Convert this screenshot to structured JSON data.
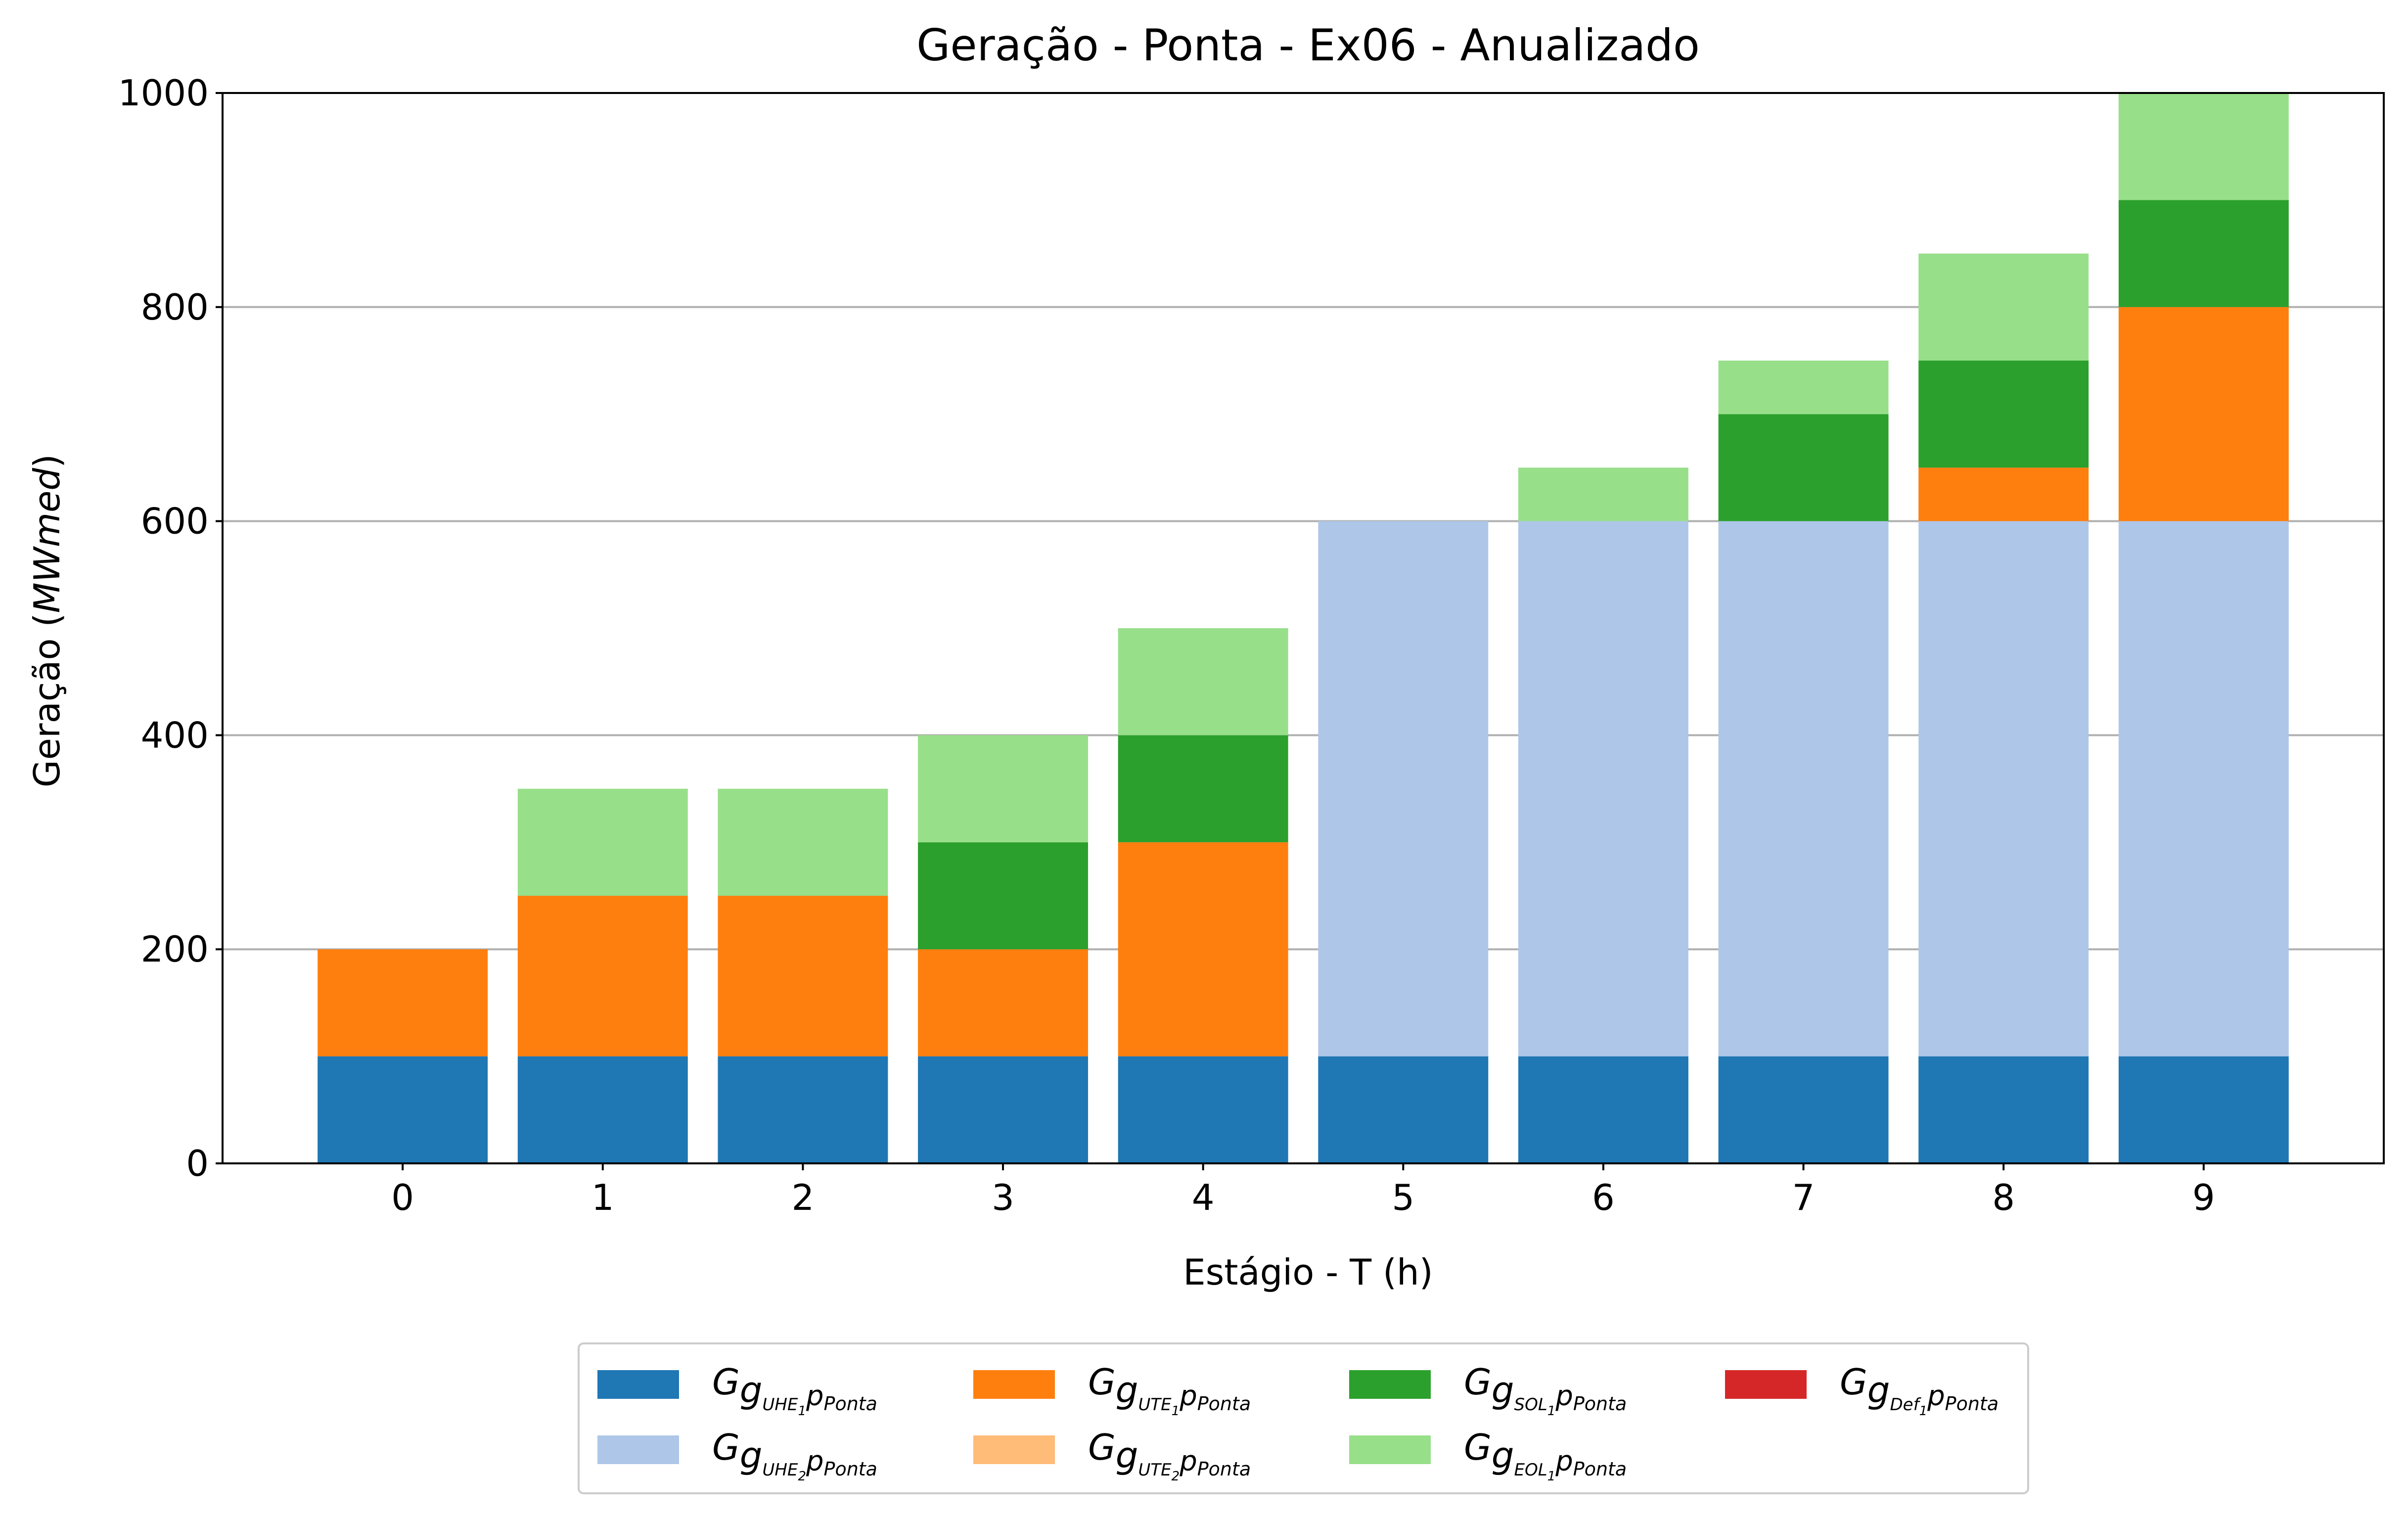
{
  "chart_data": {
    "type": "bar",
    "stacked": true,
    "title": "Geração - Ponta - Ex06 - Anualizado",
    "xlabel": "Estágio - T (h)",
    "ylabel_main": "Geração (",
    "ylabel_unit": "MWmed",
    "ylabel_close": ")",
    "categories": [
      "0",
      "1",
      "2",
      "3",
      "4",
      "5",
      "6",
      "7",
      "8",
      "9"
    ],
    "ylim": [
      0,
      1000
    ],
    "yticks": [
      0,
      200,
      400,
      600,
      800,
      1000
    ],
    "grid": "horizontal",
    "legend_position": "bottom-center",
    "series": [
      {
        "base": "G",
        "sub": "g",
        "subsub": "UHE",
        "subsubsub": "1",
        "tail": "p",
        "tailsub": "Ponta",
        "color": "#1f77b4",
        "values": [
          100,
          100,
          100,
          100,
          100,
          100,
          100,
          100,
          100,
          100
        ]
      },
      {
        "base": "G",
        "sub": "g",
        "subsub": "UHE",
        "subsubsub": "2",
        "tail": "p",
        "tailsub": "Ponta",
        "color": "#aec7e8",
        "values": [
          0,
          0,
          0,
          0,
          0,
          500,
          500,
          500,
          500,
          500
        ]
      },
      {
        "base": "G",
        "sub": "g",
        "subsub": "UTE",
        "subsubsub": "1",
        "tail": "p",
        "tailsub": "Ponta",
        "color": "#ff7f0e",
        "values": [
          100,
          150,
          150,
          100,
          200,
          0,
          0,
          0,
          50,
          200
        ]
      },
      {
        "base": "G",
        "sub": "g",
        "subsub": "UTE",
        "subsubsub": "2",
        "tail": "p",
        "tailsub": "Ponta",
        "color": "#ffbb78",
        "values": [
          0,
          0,
          0,
          0,
          0,
          0,
          0,
          0,
          0,
          0
        ]
      },
      {
        "base": "G",
        "sub": "g",
        "subsub": "SOL",
        "subsubsub": "1",
        "tail": "p",
        "tailsub": "Ponta",
        "color": "#2ca02c",
        "values": [
          0,
          0,
          0,
          100,
          100,
          0,
          0,
          100,
          100,
          100
        ]
      },
      {
        "base": "G",
        "sub": "g",
        "subsub": "EOL",
        "subsubsub": "1",
        "tail": "p",
        "tailsub": "Ponta",
        "color": "#98df8a",
        "values": [
          0,
          100,
          100,
          100,
          100,
          0,
          50,
          50,
          100,
          100
        ]
      },
      {
        "base": "G",
        "sub": "g",
        "subsub": "Def",
        "subsubsub": "1",
        "tail": "p",
        "tailsub": "Ponta",
        "color": "#d62728",
        "values": [
          0,
          0,
          0,
          0,
          0,
          0,
          0,
          0,
          0,
          0
        ]
      }
    ]
  }
}
